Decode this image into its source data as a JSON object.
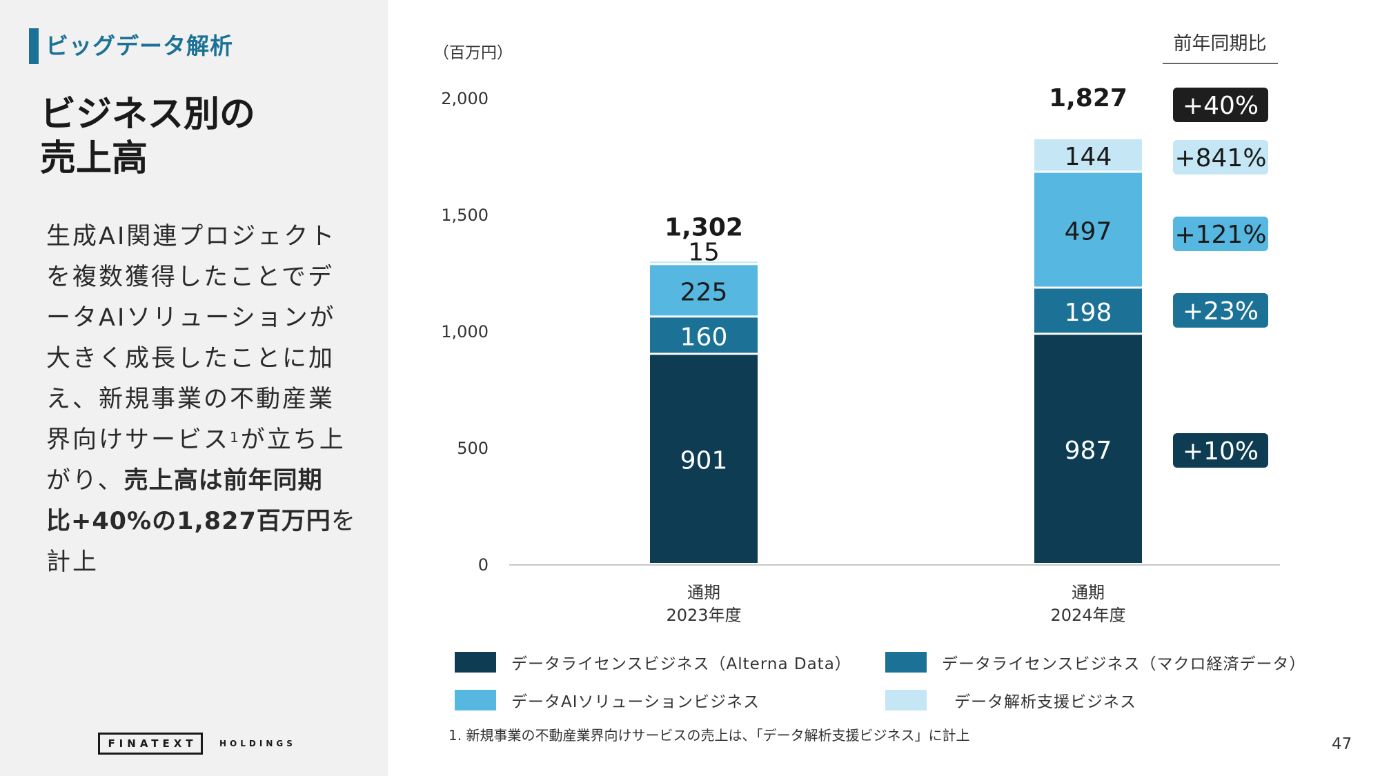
{
  "left": {
    "section_label": "ビッグデータ解析",
    "title_lines": [
      "ビジネス別の",
      "売上高"
    ],
    "body_lines": [
      {
        "text": "生成AI関連プロジェクト"
      },
      {
        "text": "を複数獲得したことでデ"
      },
      {
        "text": "ータAIソリューションが"
      },
      {
        "text": "大きく成長したことに加"
      },
      {
        "text": "え、新規事業の不動産業"
      },
      {
        "pre": "界向けサービス",
        "sup": "1",
        "post": "が立ち上"
      },
      {
        "pre": "がり、",
        "bold": "売上高は前年同期"
      },
      {
        "bold": "比+40%の1,827百万円",
        "post": "を"
      },
      {
        "text": "計上"
      }
    ],
    "logo_text": "FINATEXT",
    "logo_sub": "HOLDINGS"
  },
  "chart_data": {
    "type": "bar",
    "stacked": true,
    "unit_label": "（百万円）",
    "yticks": [
      "0",
      "500",
      "1,000",
      "1,500",
      "2,000"
    ],
    "ylim": [
      0,
      2000
    ],
    "categories": [
      {
        "line1": "通期",
        "line2": "2023年度"
      },
      {
        "line1": "通期",
        "line2": "2024年度"
      }
    ],
    "totals": [
      "1,302",
      "1,827"
    ],
    "series": [
      {
        "name": "データライセンスビジネス（Alterna Data）",
        "color": "#0e3c52",
        "label_color": "#ffffff",
        "values": [
          901,
          987
        ]
      },
      {
        "name": "データライセンスビジネス（マクロ経済データ）",
        "color": "#1b7196",
        "label_color": "#ffffff",
        "values": [
          160,
          198
        ]
      },
      {
        "name": "データAIソリューションビジネス",
        "color": "#56b7e0",
        "label_color": "#1a1a1a",
        "values": [
          225,
          497
        ]
      },
      {
        "name": "データ解析支援ビジネス",
        "color": "#c4e6f5",
        "label_color": "#1a1a1a",
        "values": [
          15,
          144
        ]
      }
    ],
    "yoy_header": "前年同期比",
    "yoy_total": {
      "label": "+40%",
      "color": "#1e1e1e",
      "text_color": "#ffffff"
    },
    "yoy_series": [
      {
        "label": "+10%",
        "color": "#0e3c52",
        "text_color": "#ffffff"
      },
      {
        "label": "+23%",
        "color": "#1b7196",
        "text_color": "#ffffff"
      },
      {
        "label": "+121%",
        "color": "#56b7e0",
        "text_color": "#1a1a1a"
      },
      {
        "label": "+841%",
        "color": "#c4e6f5",
        "text_color": "#1a1a1a"
      }
    ]
  },
  "legend": [
    {
      "label": "データライセンスビジネス（Alterna Data）",
      "color": "#0e3c52"
    },
    {
      "label": "データライセンスビジネス（マクロ経済データ）",
      "color": "#1b7196"
    },
    {
      "label": "データAIソリューションビジネス",
      "color": "#56b7e0"
    },
    {
      "label": "データ解析支援ビジネス",
      "color": "#c4e6f5"
    }
  ],
  "footnote": "1. 新規事業の不動産業界向けサービスの売上は、「データ解析支援ビジネス」に計上",
  "page_number": "47"
}
